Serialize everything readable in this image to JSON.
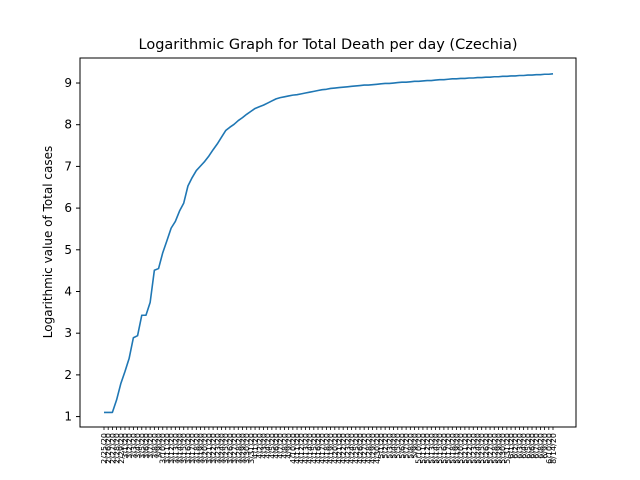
{
  "chart_data": {
    "type": "line",
    "title": "Logarithmic Graph for Total Death per day (Czechia)",
    "xlabel": "",
    "ylabel": "Logarithmic value of Total cases",
    "ylim": [
      0.75,
      9.6
    ],
    "yticks": [
      1,
      2,
      3,
      4,
      5,
      6,
      7,
      8,
      9
    ],
    "grid": false,
    "legend": "none",
    "line_color": "#1f77b4",
    "x_start_label": "2/25/20",
    "x_end_label": "8/14/20",
    "points": [
      [
        0,
        1.1
      ],
      [
        1,
        1.1
      ],
      [
        2,
        1.1
      ],
      [
        3,
        1.4
      ],
      [
        4,
        1.79
      ],
      [
        5,
        2.08
      ],
      [
        6,
        2.4
      ],
      [
        7,
        2.89
      ],
      [
        8,
        2.94
      ],
      [
        9,
        3.43
      ],
      [
        10,
        3.43
      ],
      [
        11,
        3.74
      ],
      [
        12,
        4.51
      ],
      [
        13,
        4.55
      ],
      [
        14,
        4.93
      ],
      [
        15,
        5.22
      ],
      [
        16,
        5.52
      ],
      [
        17,
        5.68
      ],
      [
        18,
        5.93
      ],
      [
        19,
        6.12
      ],
      [
        20,
        6.53
      ],
      [
        21,
        6.73
      ],
      [
        22,
        6.9
      ],
      [
        23,
        7.01
      ],
      [
        24,
        7.12
      ],
      [
        25,
        7.25
      ],
      [
        26,
        7.4
      ],
      [
        27,
        7.54
      ],
      [
        28,
        7.7
      ],
      [
        29,
        7.86
      ],
      [
        30,
        7.94
      ],
      [
        31,
        8.01
      ],
      [
        32,
        8.1
      ],
      [
        33,
        8.17
      ],
      [
        34,
        8.25
      ],
      [
        35,
        8.32
      ],
      [
        36,
        8.39
      ],
      [
        37,
        8.43
      ],
      [
        38,
        8.47
      ],
      [
        39,
        8.52
      ],
      [
        40,
        8.57
      ],
      [
        41,
        8.62
      ],
      [
        42,
        8.65
      ],
      [
        43,
        8.67
      ],
      [
        44,
        8.69
      ],
      [
        45,
        8.71
      ],
      [
        46,
        8.72
      ],
      [
        47,
        8.74
      ],
      [
        48,
        8.76
      ],
      [
        49,
        8.78
      ],
      [
        50,
        8.8
      ],
      [
        51,
        8.82
      ],
      [
        52,
        8.84
      ],
      [
        53,
        8.85
      ],
      [
        54,
        8.87
      ],
      [
        55,
        8.88
      ],
      [
        56,
        8.89
      ],
      [
        57,
        8.9
      ],
      [
        58,
        8.91
      ],
      [
        59,
        8.92
      ],
      [
        60,
        8.93
      ],
      [
        61,
        8.94
      ],
      [
        62,
        8.95
      ],
      [
        63,
        8.95
      ],
      [
        64,
        8.96
      ],
      [
        65,
        8.97
      ],
      [
        66,
        8.98
      ],
      [
        67,
        8.99
      ],
      [
        68,
        8.99
      ],
      [
        69,
        9.0
      ],
      [
        70,
        9.01
      ],
      [
        71,
        9.02
      ],
      [
        72,
        9.02
      ],
      [
        73,
        9.03
      ],
      [
        74,
        9.04
      ],
      [
        75,
        9.04
      ],
      [
        76,
        9.05
      ],
      [
        77,
        9.06
      ],
      [
        78,
        9.06
      ],
      [
        79,
        9.07
      ],
      [
        80,
        9.08
      ],
      [
        81,
        9.08
      ],
      [
        82,
        9.09
      ],
      [
        83,
        9.1
      ],
      [
        84,
        9.1
      ],
      [
        85,
        9.11
      ],
      [
        86,
        9.11
      ],
      [
        87,
        9.12
      ],
      [
        88,
        9.12
      ],
      [
        89,
        9.13
      ],
      [
        90,
        9.13
      ],
      [
        91,
        9.14
      ],
      [
        92,
        9.14
      ],
      [
        93,
        9.15
      ],
      [
        94,
        9.15
      ],
      [
        95,
        9.16
      ],
      [
        96,
        9.16
      ],
      [
        97,
        9.17
      ],
      [
        98,
        9.17
      ],
      [
        99,
        9.18
      ],
      [
        100,
        9.18
      ],
      [
        101,
        9.19
      ],
      [
        102,
        9.19
      ],
      [
        103,
        9.2
      ],
      [
        104,
        9.2
      ],
      [
        105,
        9.21
      ],
      [
        106,
        9.21
      ],
      [
        107,
        9.22
      ]
    ]
  }
}
